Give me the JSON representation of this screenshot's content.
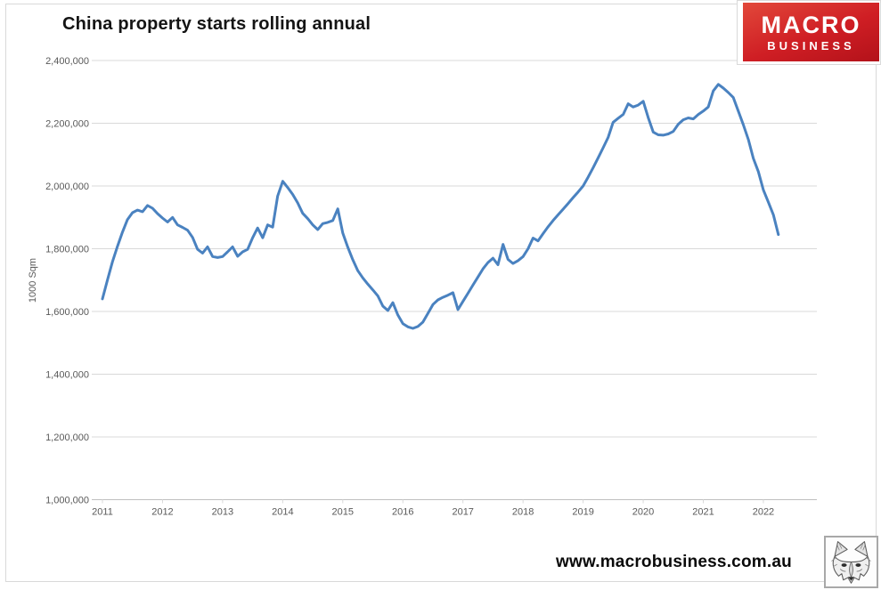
{
  "header": {
    "title": "China property starts rolling annual"
  },
  "logo": {
    "line1": "MACRO",
    "line2": "BUSINESS",
    "bg_color": "#cf1e24",
    "text_color": "#ffffff"
  },
  "footer": {
    "website": "www.macrobusiness.com.au"
  },
  "icons": {
    "bottom_right": "wolf-sketch-logo"
  },
  "chart_data": {
    "type": "line",
    "title": "China property starts rolling annual",
    "xlabel": "",
    "ylabel": "1000 Sqm",
    "legend": "none",
    "grid": true,
    "ylim": [
      1000000,
      2400000
    ],
    "y_tick_values": [
      2400000,
      2200000,
      2000000,
      1800000,
      1600000,
      1400000,
      1200000,
      1000000
    ],
    "y_tick_labels": [
      "2,400,000",
      "2,200,000",
      "2,000,000",
      "1,800,000",
      "1,600,000",
      "1,400,000",
      "1,200,000",
      "1,000,000"
    ],
    "x_tick_labels": [
      "2011",
      "2012",
      "2013",
      "2014",
      "2015",
      "2016",
      "2017",
      "2018",
      "2019",
      "2020",
      "2021",
      "2022"
    ],
    "frequency": "monthly",
    "start_month": "2011-01",
    "end_month": "2022-04",
    "line_color": "#4a82c0",
    "gridline_color": "#d9d9d9",
    "axis_color": "#bfbfbf",
    "tick_label_color": "#595959",
    "values": [
      1640000,
      1700000,
      1758000,
      1808000,
      1853000,
      1893000,
      1915000,
      1923000,
      1918000,
      1938000,
      1929000,
      1912000,
      1898000,
      1885000,
      1900000,
      1876000,
      1868000,
      1859000,
      1836000,
      1798000,
      1786000,
      1806000,
      1775000,
      1772000,
      1775000,
      1790000,
      1806000,
      1776000,
      1790000,
      1798000,
      1835000,
      1866000,
      1835000,
      1876000,
      1869000,
      1968000,
      2015000,
      1995000,
      1973000,
      1946000,
      1913000,
      1896000,
      1876000,
      1861000,
      1880000,
      1884000,
      1890000,
      1927000,
      1850000,
      1805000,
      1765000,
      1730000,
      1707000,
      1687000,
      1669000,
      1650000,
      1617000,
      1603000,
      1628000,
      1589000,
      1561000,
      1551000,
      1546000,
      1552000,
      1566000,
      1594000,
      1622000,
      1637000,
      1645000,
      1652000,
      1660000,
      1606000,
      1632000,
      1658000,
      1684000,
      1710000,
      1736000,
      1756000,
      1770000,
      1749000,
      1814000,
      1766000,
      1753000,
      1762000,
      1775000,
      1800000,
      1834000,
      1825000,
      1848000,
      1870000,
      1890000,
      1908000,
      1926000,
      1944000,
      1963000,
      1981000,
      2000000,
      2028000,
      2058000,
      2090000,
      2122000,
      2155000,
      2203000,
      2216000,
      2228000,
      2262000,
      2252000,
      2258000,
      2270000,
      2218000,
      2172000,
      2163000,
      2162000,
      2166000,
      2174000,
      2197000,
      2211000,
      2217000,
      2214000,
      2228000,
      2239000,
      2252000,
      2303000,
      2324000,
      2312000,
      2298000,
      2282000,
      2239000,
      2195000,
      2148000,
      2088000,
      2046000,
      1987000,
      1948000,
      1908000,
      1845000
    ]
  }
}
